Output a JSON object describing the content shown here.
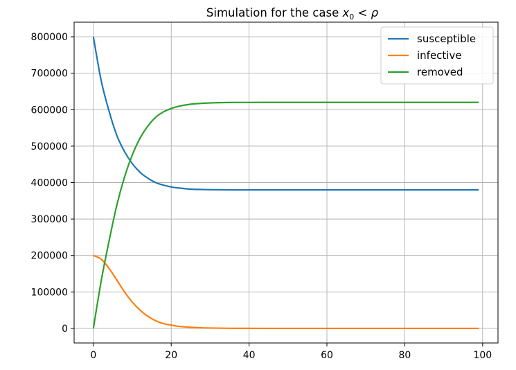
{
  "chart_data": {
    "type": "line",
    "title": {
      "prefix": "Simulation for the case ",
      "var": "x",
      "sub": "0",
      "op": " < ",
      "rho": "ρ"
    },
    "xlabel": "",
    "ylabel": "",
    "xlim": [
      -4.95,
      103.95
    ],
    "ylim": [
      -40000,
      840000
    ],
    "xticks": [
      0,
      20,
      40,
      60,
      80,
      100
    ],
    "xtick_labels": [
      "0",
      "20",
      "40",
      "60",
      "80",
      "100"
    ],
    "yticks": [
      0,
      100000,
      200000,
      300000,
      400000,
      500000,
      600000,
      700000,
      800000
    ],
    "ytick_labels": [
      "0",
      "100000",
      "200000",
      "300000",
      "400000",
      "500000",
      "600000",
      "700000",
      "800000"
    ],
    "grid": true,
    "legend_position": "top-right",
    "x": [
      0,
      2,
      4,
      6,
      8,
      10,
      12,
      14,
      16,
      18,
      20,
      22,
      25,
      28,
      30,
      35,
      40,
      50,
      60,
      70,
      80,
      90,
      99
    ],
    "series": [
      {
        "name": "susceptible",
        "color": "#1f77b4",
        "values": [
          800000,
          680000,
          597000,
          530000,
          485000,
          452000,
          428000,
          412000,
          400000,
          393000,
          388000,
          385000,
          382000,
          381000,
          380500,
          380000,
          380000,
          380000,
          380000,
          380000,
          380000,
          380000,
          380000
        ]
      },
      {
        "name": "infective",
        "color": "#ff7f0e",
        "values": [
          200000,
          190000,
          165000,
          133000,
          100000,
          72000,
          50000,
          33000,
          21000,
          13000,
          9000,
          5500,
          3000,
          1500,
          1000,
          300,
          100,
          0,
          0,
          0,
          0,
          0,
          0
        ]
      },
      {
        "name": "removed",
        "color": "#2ca02c",
        "values": [
          0,
          130000,
          238000,
          337000,
          415000,
          476000,
          522000,
          555000,
          579000,
          594000,
          603000,
          609500,
          615000,
          617500,
          618500,
          619700,
          619900,
          620000,
          620000,
          620000,
          620000,
          620000,
          620000
        ]
      }
    ]
  }
}
